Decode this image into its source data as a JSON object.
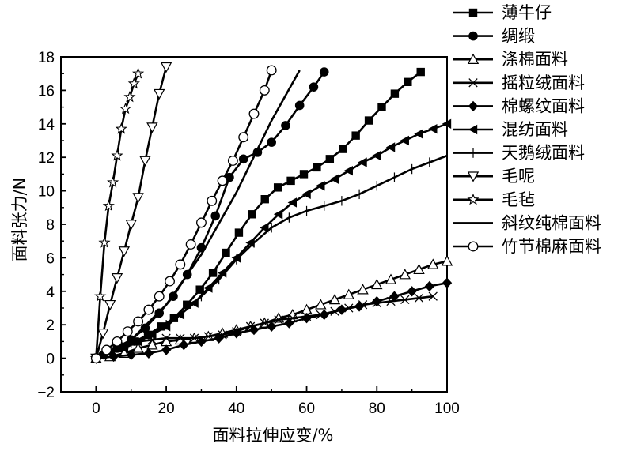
{
  "chart_data": {
    "type": "line",
    "title": "",
    "xlabel": "面料拉伸应变/%",
    "ylabel": "面料张力/N",
    "xlim": [
      -10,
      100
    ],
    "ylim": [
      -2,
      18
    ],
    "xticks": [
      "0",
      "20",
      "40",
      "60",
      "80",
      "100"
    ],
    "yticks": [
      "−2",
      "0",
      "2",
      "4",
      "6",
      "8",
      "10",
      "12",
      "14",
      "16",
      "18"
    ],
    "legend_position": "right",
    "grid": false,
    "series": [
      {
        "name": "薄牛仔",
        "marker": "square",
        "x": [
          0,
          3.7,
          7.4,
          11.1,
          14.8,
          18.5,
          22.2,
          25.9,
          29.6,
          33.3,
          37,
          40.7,
          44.4,
          48.1,
          51.8,
          55.5,
          59.2,
          62.9,
          66.6,
          70.3,
          74,
          77.7,
          81.4,
          85.1,
          88.8,
          92.5
        ],
        "y": [
          0,
          0.3,
          0.6,
          1.0,
          1.4,
          1.9,
          2.4,
          3.2,
          4.1,
          5.1,
          6.3,
          7.5,
          8.6,
          9.5,
          10.2,
          10.6,
          11.0,
          11.4,
          11.9,
          12.5,
          13.3,
          14.2,
          15.0,
          15.8,
          16.5,
          17.1
        ]
      },
      {
        "name": "绸缎",
        "marker": "circle",
        "x": [
          0,
          2,
          6,
          10,
          14,
          18,
          22,
          26,
          30,
          34,
          38,
          42,
          46,
          50,
          54,
          58,
          62,
          65
        ],
        "y": [
          0,
          0.2,
          0.6,
          1.1,
          1.8,
          2.7,
          3.7,
          5.0,
          6.6,
          8.5,
          10.8,
          11.9,
          12.3,
          12.9,
          13.9,
          15.1,
          16.2,
          17.1
        ]
      },
      {
        "name": "涤棉面料",
        "marker": "triangle-up",
        "x": [
          0,
          4,
          8,
          12,
          16,
          20,
          24,
          28,
          32,
          36,
          40,
          44,
          48,
          52,
          56,
          60,
          64,
          68,
          72,
          76,
          80,
          84,
          88,
          92,
          96,
          100
        ],
        "y": [
          0,
          0.1,
          0.3,
          0.6,
          0.8,
          1.0,
          1.1,
          1.2,
          1.3,
          1.5,
          1.7,
          1.9,
          2.1,
          2.4,
          2.6,
          2.9,
          3.2,
          3.5,
          3.8,
          4.1,
          4.4,
          4.7,
          5.0,
          5.3,
          5.6,
          5.8
        ]
      },
      {
        "name": "摇粒绒面料",
        "marker": "x",
        "x": [
          0,
          4,
          8,
          12,
          16,
          20,
          24,
          28,
          32,
          36,
          40,
          44,
          48,
          52,
          56,
          60,
          64,
          68,
          72,
          76,
          80,
          84,
          88,
          92,
          96
        ],
        "y": [
          0,
          0.4,
          0.8,
          1.0,
          1.1,
          1.2,
          1.2,
          1.2,
          1.3,
          1.4,
          1.6,
          1.9,
          2.1,
          2.3,
          2.4,
          2.5,
          2.6,
          2.8,
          3.0,
          3.2,
          3.3,
          3.4,
          3.5,
          3.6,
          3.7
        ]
      },
      {
        "name": "棉螺纹面料",
        "marker": "diamond",
        "x": [
          0,
          5,
          10,
          15,
          20,
          25,
          30,
          35,
          40,
          45,
          50,
          55,
          60,
          65,
          70,
          75,
          80,
          85,
          90,
          95,
          100
        ],
        "y": [
          0,
          0.1,
          0.2,
          0.3,
          0.5,
          0.8,
          1.0,
          1.2,
          1.5,
          1.7,
          1.9,
          2.1,
          2.4,
          2.6,
          2.9,
          3.1,
          3.4,
          3.7,
          4.0,
          4.3,
          4.5
        ]
      },
      {
        "name": "混纺面料",
        "marker": "triangle-left",
        "x": [
          0,
          4,
          8,
          12,
          16,
          20,
          24,
          28,
          32,
          36,
          40,
          44,
          48,
          52,
          56,
          60,
          64,
          68,
          72,
          76,
          80,
          84,
          88,
          92,
          96,
          100
        ],
        "y": [
          0,
          0.3,
          0.6,
          1.0,
          1.4,
          1.9,
          2.6,
          3.3,
          4.2,
          5.1,
          6.0,
          6.9,
          7.8,
          8.6,
          9.3,
          9.8,
          10.3,
          10.7,
          11.2,
          11.7,
          12.1,
          12.6,
          13.0,
          13.4,
          13.7,
          14.0
        ]
      },
      {
        "name": "天鹅绒面料",
        "marker": "plus",
        "x": [
          0,
          5,
          10,
          15,
          20,
          25,
          30,
          35,
          40,
          45,
          50,
          55,
          60,
          65,
          70,
          75,
          80,
          85,
          90,
          95,
          100
        ],
        "y": [
          0,
          0.4,
          0.9,
          1.4,
          2.0,
          2.8,
          3.7,
          4.7,
          5.9,
          6.9,
          7.8,
          8.4,
          8.8,
          9.1,
          9.4,
          9.8,
          10.3,
          10.8,
          11.3,
          11.7,
          12.1
        ]
      },
      {
        "name": "毛呢",
        "marker": "triangle-down",
        "x": [
          0,
          2,
          4,
          6,
          8,
          10,
          12,
          14,
          16,
          18,
          20
        ],
        "y": [
          0,
          1.5,
          3.2,
          4.8,
          6.4,
          8.0,
          9.6,
          11.8,
          13.8,
          15.8,
          17.4
        ]
      },
      {
        "name": "毛毡",
        "marker": "star",
        "x": [
          0,
          1.2,
          2.4,
          3.6,
          4.8,
          6,
          7.2,
          8.4,
          9.6,
          10.8,
          12
        ],
        "y": [
          0,
          3.7,
          6.9,
          9.1,
          10.5,
          12.1,
          13.7,
          14.9,
          15.6,
          16.4,
          17.0
        ]
      },
      {
        "name": "斜纹纯棉面料",
        "marker": "none",
        "x": [
          0,
          10,
          20,
          30,
          40,
          50,
          58
        ],
        "y": [
          0,
          1.1,
          3.2,
          6.2,
          9.9,
          14.2,
          17.2
        ]
      },
      {
        "name": "竹节棉麻面料",
        "marker": "open-circle",
        "x": [
          0,
          3,
          6,
          9,
          12,
          15,
          18,
          21,
          24,
          27,
          30,
          33,
          36,
          39,
          42,
          45,
          48,
          50
        ],
        "y": [
          0,
          0.5,
          1.0,
          1.6,
          2.2,
          2.9,
          3.7,
          4.6,
          5.6,
          6.8,
          8.1,
          9.4,
          10.6,
          11.8,
          13.2,
          14.6,
          16.0,
          17.2
        ]
      }
    ]
  }
}
